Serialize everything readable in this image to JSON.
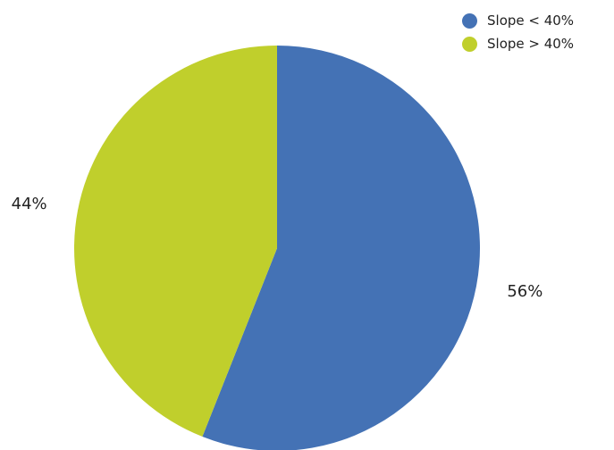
{
  "chart_data": {
    "type": "pie",
    "title": "",
    "slices": [
      {
        "label": "Slope < 40%",
        "value": 56,
        "display": "56%",
        "color": "#4472b5"
      },
      {
        "label": "Slope > 40%",
        "value": 44,
        "display": "44%",
        "color": "#c0cf2c"
      }
    ],
    "start_angle_deg": 0,
    "direction": "clockwise",
    "legend_position": "top-right"
  }
}
